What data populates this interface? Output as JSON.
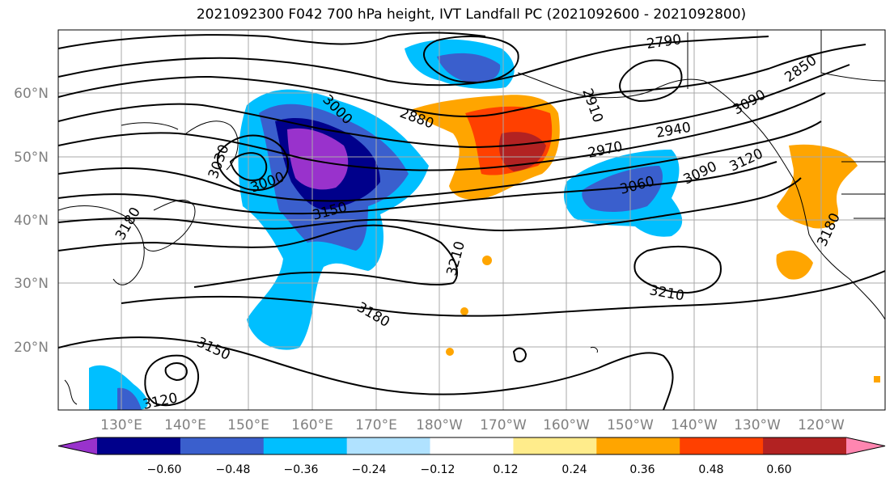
{
  "title": "2021092300 F042 700 hPa height, IVT Landfall PC (2021092600 - 2021092800)",
  "map": {
    "lat_ticks": [
      "60°N",
      "50°N",
      "40°N",
      "30°N",
      "20°N"
    ],
    "lon_ticks": [
      "130°E",
      "140°E",
      "150°E",
      "160°E",
      "170°E",
      "180°W",
      "170°W",
      "160°W",
      "150°W",
      "140°W",
      "130°W",
      "120°W"
    ],
    "contour_labels": [
      "2790",
      "2850",
      "2880",
      "2910",
      "2940",
      "2970",
      "3000",
      "3030",
      "3060",
      "3090",
      "3120",
      "3150",
      "3180",
      "3210",
      "3120",
      "3150",
      "3180",
      "3210",
      "3180",
      "3000",
      "3090"
    ],
    "colorbar": {
      "colors": [
        "#9932cc",
        "#00008b",
        "#3a5fcd",
        "#00bfff",
        "#b0e2ff",
        "#ffffff",
        "#ffec8b",
        "#ffa500",
        "#ff4000",
        "#b22222",
        "#ff86b0"
      ],
      "tick_labels": [
        "−0.60",
        "−0.48",
        "−0.36",
        "−0.24",
        "−0.12",
        "0.12",
        "0.24",
        "0.36",
        "0.48",
        "0.60"
      ]
    }
  }
}
